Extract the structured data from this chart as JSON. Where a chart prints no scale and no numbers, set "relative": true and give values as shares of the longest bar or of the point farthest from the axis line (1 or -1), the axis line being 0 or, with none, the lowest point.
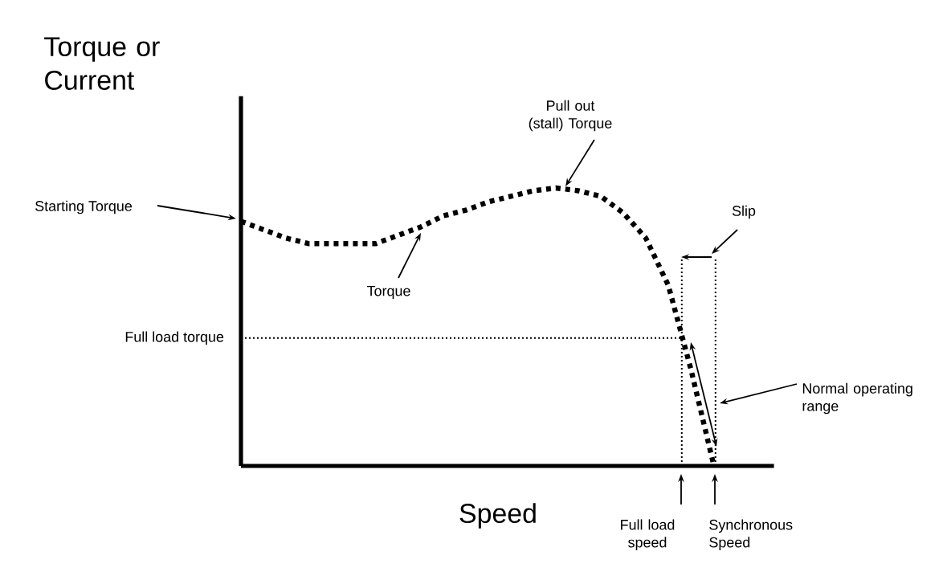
{
  "chart_data": {
    "type": "line",
    "relative": true,
    "xlabel": "Speed",
    "ylabel": "Torque or Current",
    "categories": [
      null,
      null,
      null,
      null,
      null,
      null,
      null,
      null,
      null,
      null,
      null,
      null,
      null,
      null,
      null,
      null,
      null,
      null,
      null,
      null,
      null,
      null
    ],
    "series": [
      {
        "color": "#000000",
        "line_style": "dotted",
        "values": [
          0.88,
          0.85,
          0.82,
          0.8,
          0.8,
          0.8,
          0.8,
          0.83,
          0.86,
          0.9,
          0.92,
          0.95,
          0.97,
          0.99,
          1,
          0.99,
          0.97,
          0.91,
          0.82,
          0.65,
          0.35,
          0.01
        ]
      }
    ],
    "ref_lines": [
      {
        "axis": "y",
        "value": 0.46,
        "label": "Full load torque",
        "line_style": "dotted"
      }
    ],
    "annotations": [
      "Torque",
      "Starting Torque",
      "Pull out (stall) Torque",
      "Slip",
      "Normal operating range",
      "Full load speed",
      "Synchronous Speed"
    ]
  }
}
